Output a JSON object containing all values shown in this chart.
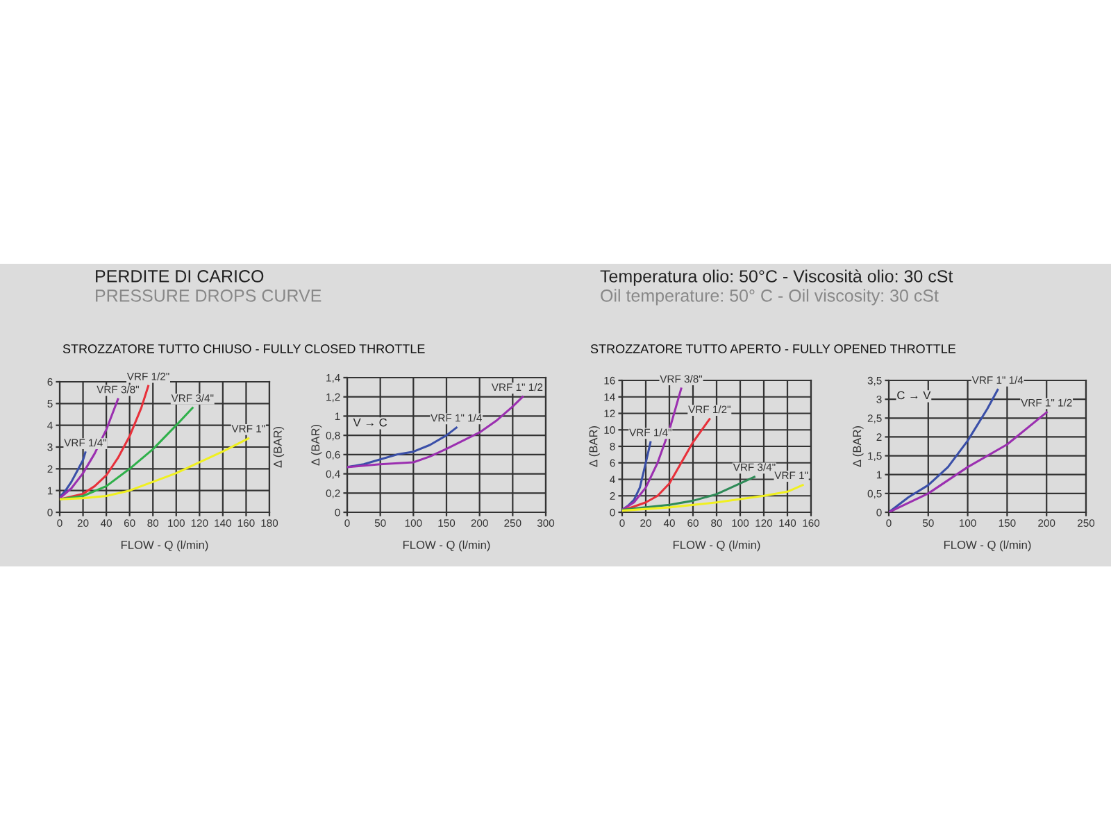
{
  "chart_data": [
    {
      "type": "line",
      "title": "STROZZATORE TUTTO CHIUSO - FULLY CLOSED THROTTLE",
      "xlabel": "FLOW - Q (l/min)",
      "ylabel": "Δ (BAR)",
      "annotations": [
        "PERDITE DI CARICO",
        "PRESSURE DROPS CURVE"
      ],
      "xlim": [
        0,
        180
      ],
      "xticks": [
        0,
        20,
        40,
        60,
        80,
        100,
        120,
        140,
        160,
        180
      ],
      "ylim": [
        0,
        6
      ],
      "yticks": [
        0,
        1,
        2,
        3,
        4,
        5,
        6
      ],
      "grid": true,
      "legend": false,
      "marker": "none",
      "line_style": "solid",
      "series": [
        {
          "name": "VRF 1/4\"",
          "color": "#3a4fa8",
          "x": [
            0,
            5,
            10,
            15,
            20,
            22
          ],
          "values": [
            0.7,
            1.0,
            1.4,
            1.9,
            2.4,
            2.75
          ]
        },
        {
          "name": "VRF 3/8\"",
          "color": "#9b2fb0",
          "x": [
            0,
            10,
            20,
            30,
            40,
            45,
            50
          ],
          "values": [
            0.65,
            1.1,
            1.8,
            2.7,
            3.8,
            4.5,
            5.2
          ]
        },
        {
          "name": "VRF 1/2\"",
          "color": "#e8303a",
          "x": [
            0,
            20,
            30,
            40,
            50,
            60,
            70,
            76
          ],
          "values": [
            0.6,
            0.85,
            1.2,
            1.7,
            2.5,
            3.5,
            4.8,
            5.8
          ]
        },
        {
          "name": "VRF 3/4\"",
          "color": "#2fb04a",
          "x": [
            0,
            20,
            40,
            60,
            80,
            100,
            114
          ],
          "values": [
            0.6,
            0.75,
            1.2,
            2.0,
            2.9,
            4.0,
            4.8
          ]
        },
        {
          "name": "VRF 1\"",
          "color": "#f0f020",
          "x": [
            0,
            20,
            40,
            60,
            80,
            100,
            120,
            140,
            162
          ],
          "values": [
            0.6,
            0.65,
            0.75,
            1.0,
            1.4,
            1.8,
            2.3,
            2.8,
            3.4
          ]
        }
      ]
    },
    {
      "type": "line",
      "xlabel": "FLOW - Q (l/min)",
      "ylabel": "Δ (BAR)",
      "annotations": [
        "V → C"
      ],
      "xlim": [
        0,
        300
      ],
      "xticks": [
        0,
        50,
        100,
        150,
        200,
        250,
        300
      ],
      "ylim": [
        0,
        1.4
      ],
      "yticks": [
        0,
        {
          "value": 0.2,
          "label": "0,2"
        },
        {
          "value": 0.4,
          "label": "0,4"
        },
        {
          "value": 0.6,
          "label": "0,6"
        },
        {
          "value": 0.8,
          "label": "0,8"
        },
        1,
        {
          "value": 1.2,
          "label": "1,2"
        },
        {
          "value": 1.4,
          "label": "1,4"
        }
      ],
      "grid": true,
      "legend": false,
      "marker": "none",
      "line_style": "solid",
      "series": [
        {
          "name": "VRF 1\" 1/4",
          "color": "#3a4fa8",
          "x": [
            0,
            25,
            50,
            75,
            100,
            125,
            150,
            165
          ],
          "values": [
            0.47,
            0.5,
            0.55,
            0.6,
            0.63,
            0.7,
            0.8,
            0.88
          ]
        },
        {
          "name": "VRF 1\" 1/2",
          "color": "#9b2fb0",
          "x": [
            0,
            50,
            100,
            125,
            150,
            200,
            225,
            250,
            265
          ],
          "values": [
            0.47,
            0.5,
            0.52,
            0.58,
            0.66,
            0.83,
            0.95,
            1.1,
            1.2
          ]
        }
      ]
    },
    {
      "type": "line",
      "title": "STROZZATORE TUTTO APERTO - FULLY OPENED THROTTLE",
      "xlabel": "FLOW - Q (l/min)",
      "ylabel": "Δ (BAR)",
      "annotations": [
        "Temperatura olio: 50°C - Viscosità olio: 30 cSt",
        "Oil temperature: 50° C - Oil viscosity: 30 cSt"
      ],
      "xlim": [
        0,
        160
      ],
      "xticks": [
        0,
        20,
        40,
        60,
        80,
        100,
        120,
        140,
        160
      ],
      "ylim": [
        0,
        16
      ],
      "yticks": [
        0,
        2,
        4,
        6,
        8,
        10,
        12,
        14,
        16
      ],
      "grid": true,
      "legend": false,
      "marker": "none",
      "line_style": "solid",
      "series": [
        {
          "name": "VRF 1/4\"",
          "color": "#3a4fa8",
          "x": [
            0,
            5,
            10,
            15,
            20,
            24
          ],
          "values": [
            0.3,
            0.8,
            1.5,
            3,
            6,
            8.5
          ]
        },
        {
          "name": "VRF 3/8\"",
          "color": "#9b2fb0",
          "x": [
            0,
            10,
            20,
            30,
            40,
            45,
            50
          ],
          "values": [
            0.3,
            1.2,
            3,
            6,
            10,
            12.5,
            15
          ]
        },
        {
          "name": "VRF 1/2\"",
          "color": "#e8303a",
          "x": [
            0,
            20,
            30,
            40,
            50,
            60,
            74
          ],
          "values": [
            0.2,
            1.2,
            2,
            3.5,
            6,
            8.5,
            11.3
          ]
        },
        {
          "name": "VRF 3/4\"",
          "color": "#2e8b57",
          "x": [
            0,
            20,
            40,
            60,
            80,
            100,
            112
          ],
          "values": [
            0.3,
            0.6,
            0.9,
            1.4,
            2.2,
            3.5,
            4.3
          ]
        },
        {
          "name": "VRF 1\"",
          "color": "#f0f020",
          "x": [
            0,
            40,
            80,
            120,
            140,
            153
          ],
          "values": [
            0.2,
            0.6,
            1.2,
            2,
            2.5,
            3.3
          ]
        }
      ]
    },
    {
      "type": "line",
      "xlabel": "FLOW - Q (l/min)",
      "ylabel": "Δ (BAR)",
      "annotations": [
        "C → V"
      ],
      "xlim": [
        0,
        250
      ],
      "xticks": [
        0,
        50,
        100,
        150,
        200,
        250
      ],
      "ylim": [
        0,
        3.5
      ],
      "yticks": [
        0,
        {
          "value": 0.5,
          "label": "0,5"
        },
        1,
        {
          "value": 1.5,
          "label": "1,5"
        },
        2,
        {
          "value": 2.5,
          "label": "2,5"
        },
        3,
        {
          "value": 3.5,
          "label": "3,5"
        }
      ],
      "grid": true,
      "legend": false,
      "marker": "none",
      "line_style": "solid",
      "series": [
        {
          "name": "VRF 1\" 1/4",
          "color": "#3a4fa8",
          "x": [
            0,
            25,
            50,
            75,
            100,
            125,
            138
          ],
          "values": [
            0,
            0.4,
            0.72,
            1.2,
            1.9,
            2.75,
            3.25
          ]
        },
        {
          "name": "VRF 1\" 1/2",
          "color": "#9b2fb0",
          "x": [
            0,
            25,
            50,
            75,
            100,
            150,
            200
          ],
          "values": [
            0,
            0.25,
            0.5,
            0.85,
            1.2,
            1.8,
            2.65
          ]
        }
      ]
    }
  ]
}
